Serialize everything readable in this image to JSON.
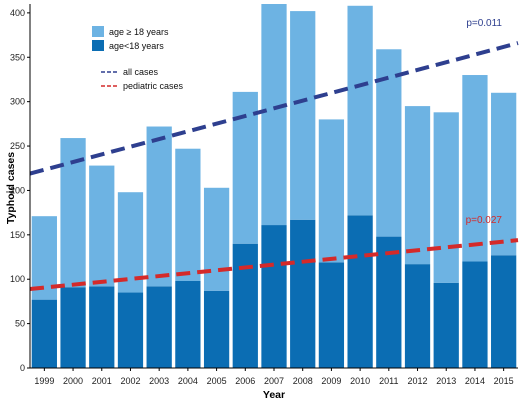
{
  "chart_data": {
    "type": "bar",
    "xlabel": "Year",
    "ylabel": "Typhoid cases",
    "ylim": [
      0,
      410
    ],
    "yticks": [
      0,
      50,
      100,
      150,
      200,
      250,
      300,
      350,
      400
    ],
    "categories": [
      "1999",
      "2000",
      "2001",
      "2002",
      "2003",
      "2004",
      "2005",
      "2006",
      "2007",
      "2008",
      "2009",
      "2010",
      "2011",
      "2012",
      "2013",
      "2014",
      "2015"
    ],
    "stacked": true,
    "series": [
      {
        "name": "age<18 years",
        "values": [
          77,
          91,
          92,
          85,
          92,
          98,
          87,
          140,
          161,
          167,
          119,
          172,
          148,
          117,
          96,
          120,
          127
        ],
        "color": "#0b6db3"
      },
      {
        "name": "age ≥ 18 years",
        "values": [
          94,
          168,
          136,
          113,
          180,
          149,
          116,
          171,
          249,
          235,
          161,
          236,
          211,
          178,
          192,
          210,
          183
        ],
        "color": "#6db3e3"
      }
    ],
    "totals": [
      171,
      259,
      228,
      198,
      272,
      247,
      203,
      311,
      410,
      402,
      280,
      408,
      359,
      295,
      288,
      330,
      310
    ],
    "trendlines": [
      {
        "name": "all cases",
        "start": 219,
        "end": 366,
        "color": "#2e3f8f",
        "label": "p=0.011"
      },
      {
        "name": "pediatric cases",
        "start": 89,
        "end": 144,
        "color": "#d42a2a",
        "label": "p=0.027"
      }
    ],
    "legend": {
      "placement": "top-left",
      "bar_items": [
        "age ≥ 18 years",
        "age<18 years"
      ],
      "line_items": [
        "all cases",
        "pediatric cases"
      ]
    },
    "grid": false
  }
}
